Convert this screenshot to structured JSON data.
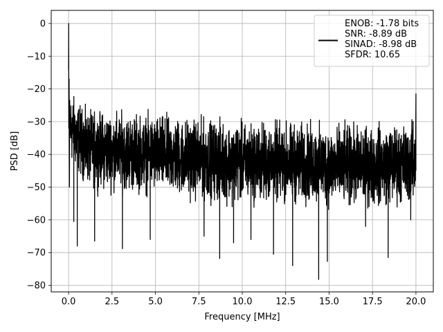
{
  "chart_data": {
    "type": "line",
    "title": "",
    "xlabel": "Frequency [MHz]",
    "ylabel": "PSD [dB]",
    "xlim": [
      -1.0,
      21.0
    ],
    "ylim": [
      -82.0,
      4.0
    ],
    "xticks": [
      0.0,
      2.5,
      5.0,
      7.5,
      10.0,
      12.5,
      15.0,
      17.5,
      20.0
    ],
    "xtick_labels": [
      "0.0",
      "2.5",
      "5.0",
      "7.5",
      "10.0",
      "12.5",
      "15.0",
      "17.5",
      "20.0"
    ],
    "yticks": [
      0,
      -10,
      -20,
      -30,
      -40,
      -50,
      -60,
      -70,
      -80
    ],
    "ytick_labels": [
      "0",
      "−10",
      "−20",
      "−30",
      "−40",
      "−50",
      "−60",
      "−70",
      "−80"
    ],
    "grid": true,
    "legend": {
      "placement": "top-right",
      "entries": [
        "ENOB: -1.78 bits",
        "SNR: -8.89 dB",
        "SINAD: -8.98 dB",
        "SFDR: 10.65"
      ]
    },
    "series": [
      {
        "color": "#000000",
        "spikes": [
          {
            "x": 0.0,
            "y": 0.0
          },
          {
            "x": 20.0,
            "y": -21.5
          }
        ],
        "noise_envelope": {
          "x": [
            0.1,
            1.0,
            2.5,
            5.0,
            7.5,
            10.0,
            12.5,
            15.0,
            17.5,
            19.9
          ],
          "upper": [
            -18,
            -24,
            -24,
            -25,
            -26,
            -27,
            -27,
            -28,
            -28,
            -27
          ],
          "lower": [
            -45,
            -52,
            -54,
            -55,
            -57,
            -58,
            -58,
            -59,
            -59,
            -58
          ]
        },
        "deep_dips": [
          {
            "x": 0.3,
            "y": -60.5
          },
          {
            "x": 0.5,
            "y": -68
          },
          {
            "x": 1.5,
            "y": -66.5
          },
          {
            "x": 3.1,
            "y": -68.8
          },
          {
            "x": 4.7,
            "y": -66
          },
          {
            "x": 7.8,
            "y": -65
          },
          {
            "x": 8.7,
            "y": -71.8
          },
          {
            "x": 9.5,
            "y": -67
          },
          {
            "x": 10.5,
            "y": -66
          },
          {
            "x": 11.8,
            "y": -70.5
          },
          {
            "x": 12.9,
            "y": -74
          },
          {
            "x": 14.4,
            "y": -78.2
          },
          {
            "x": 14.9,
            "y": -72.7
          },
          {
            "x": 17.1,
            "y": -62
          },
          {
            "x": 18.4,
            "y": -71.5
          },
          {
            "x": 19.7,
            "y": -60
          }
        ]
      }
    ]
  }
}
